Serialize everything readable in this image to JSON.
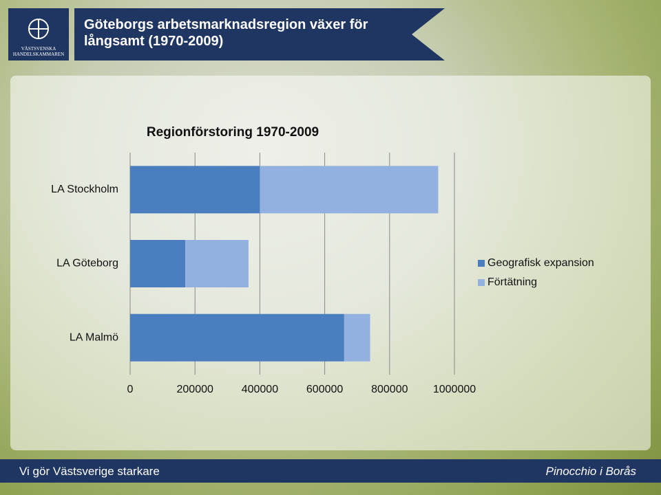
{
  "header": {
    "title": "Göteborgs arbetsmarknadsregion växer för långsamt (1970-2009)",
    "logo_text": "VÄSTSVENSKA HANDELSKAMMAREN"
  },
  "footer": {
    "left": "Vi gör Västsverige starkare",
    "right": "Pinocchio i Borås"
  },
  "chart_data": {
    "type": "hbar-stacked",
    "title": "Regionförstoring 1970-2009",
    "categories": [
      "LA Stockholm",
      "LA Göteborg",
      "LA Malmö"
    ],
    "series": [
      {
        "name": "Geografisk expansion",
        "color": "#4a7ebf",
        "values": [
          400000,
          170000,
          660000
        ]
      },
      {
        "name": "Förtätning",
        "color": "#93b1e0",
        "values": [
          550000,
          195000,
          80000
        ]
      }
    ],
    "xlim": [
      0,
      1000000
    ],
    "xticks": [
      0,
      200000,
      400000,
      600000,
      800000,
      1000000
    ],
    "grid": true,
    "legend": "right"
  }
}
